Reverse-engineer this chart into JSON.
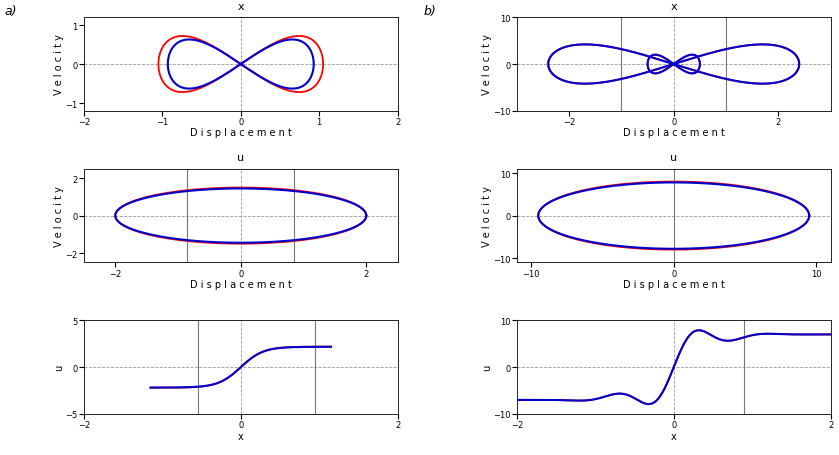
{
  "fig_width": 8.39,
  "fig_height": 4.56,
  "dpi": 100,
  "red_color": "#ff0000",
  "blue_color": "#0000cc",
  "grid_color": "#999999",
  "vline_color": "#777777",
  "panel_a_label": "a)",
  "panel_b_label": "b)",
  "title_x": "x",
  "title_u": "u",
  "xlabel_disp": "D i s p l a c e m e n t",
  "ylabel_vel": "V e l o c i t y",
  "ylabel_u": "u",
  "xlabel_x": "x",
  "lw_red": 1.3,
  "lw_blue": 1.5,
  "lw_blue_dash": 1.5
}
